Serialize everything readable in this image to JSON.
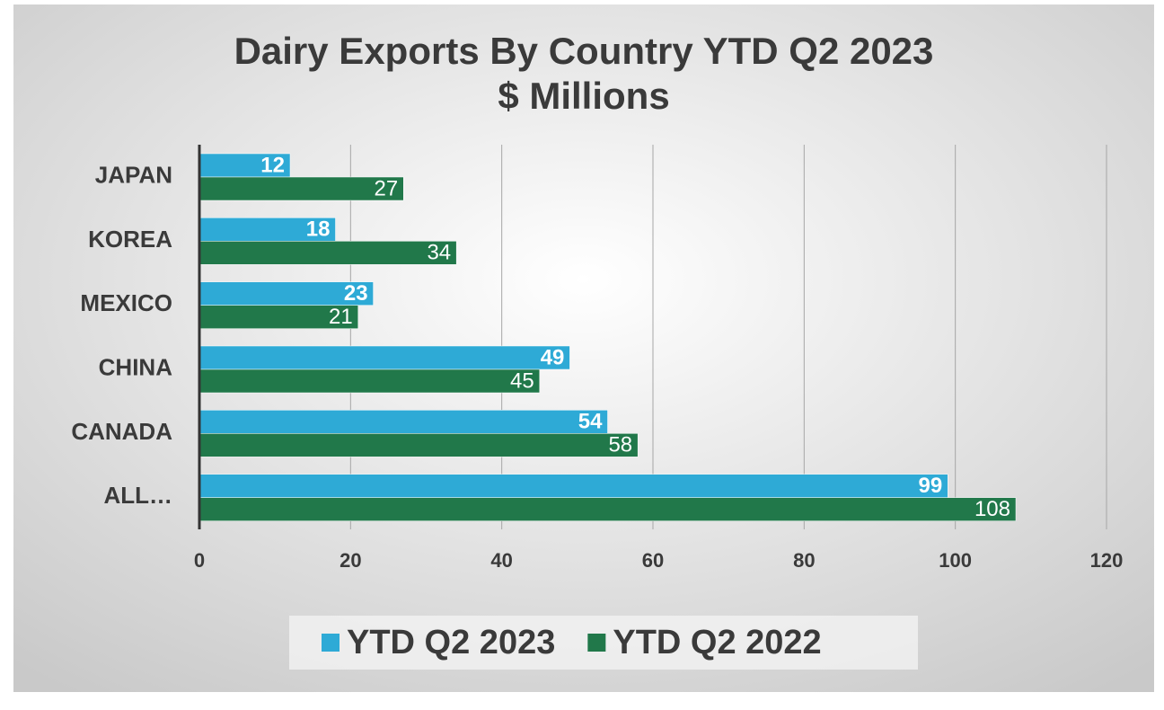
{
  "chart_data": {
    "type": "hbar",
    "title": "Dairy Exports By Country YTD Q2 2023",
    "subtitle": "$ Millions",
    "categories": [
      "JAPAN",
      "KOREA",
      "MEXICO",
      "CHINA",
      "CANADA",
      "ALL…"
    ],
    "series": [
      {
        "name": "YTD Q2 2023",
        "color": "#2eaad6",
        "values": [
          12,
          18,
          23,
          49,
          54,
          99
        ]
      },
      {
        "name": "YTD Q2 2022",
        "color": "#21784a",
        "values": [
          27,
          34,
          21,
          45,
          58,
          108
        ]
      }
    ],
    "xlim": [
      0,
      120
    ],
    "xticks": [
      0,
      20,
      40,
      60,
      80,
      100,
      120
    ],
    "grid": true,
    "legend": "bottom"
  }
}
